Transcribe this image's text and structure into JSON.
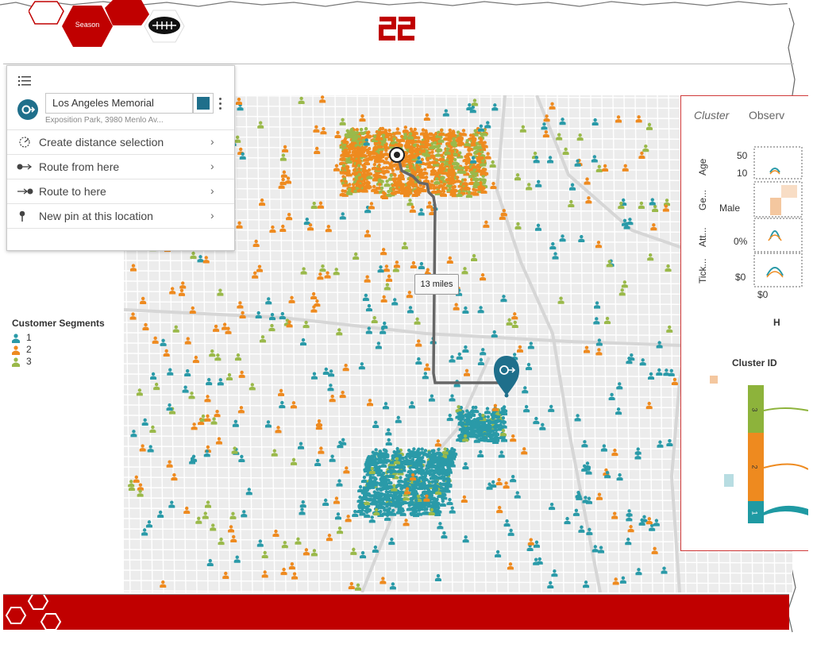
{
  "header": {
    "season_label": "Season"
  },
  "popup": {
    "location_name": "Los Angeles Memorial",
    "address": "Exposition Park, 3980 Menlo Av...",
    "menu_items": [
      {
        "label": "Create distance selection",
        "icon": "distance-icon"
      },
      {
        "label": "Route from here",
        "icon": "route-from-icon"
      },
      {
        "label": "Route to here",
        "icon": "route-to-icon"
      },
      {
        "label": "New pin at this location",
        "icon": "pin-icon"
      }
    ]
  },
  "legend": {
    "title": "Customer Segments",
    "items": [
      {
        "label": "1",
        "color": "#2a9aa8"
      },
      {
        "label": "2",
        "color": "#ee8a1f"
      },
      {
        "label": "3",
        "color": "#9ab94a"
      }
    ]
  },
  "route": {
    "distance_label": "13 miles"
  },
  "panel": {
    "tabs": [
      "Cluster",
      "Observ"
    ],
    "row_labels": [
      "Age",
      "Ge...",
      "Att...",
      "Tick..."
    ],
    "ticks": [
      "50",
      "10",
      "Male",
      "0%",
      "$0",
      "$0"
    ],
    "h_label": "H",
    "cluster_id_title": "Cluster ID",
    "segments": [
      {
        "label": "3",
        "color": "#8db33b"
      },
      {
        "label": "2",
        "color": "#ee8a1f"
      },
      {
        "label": "1",
        "color": "#1f9aa3"
      }
    ]
  },
  "colors": {
    "brand_red": "#c00000",
    "pin_blue": "#1f6f8b"
  }
}
